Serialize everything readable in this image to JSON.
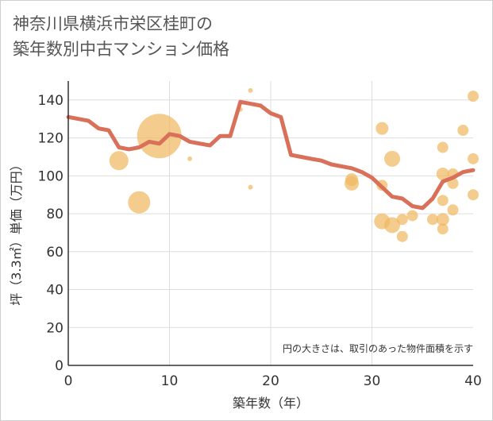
{
  "title": {
    "line1": "神奈川県横浜市栄区桂町の",
    "line2": "築年数別中古マンション価格"
  },
  "chart_data": {
    "type": "scatter+line",
    "title": "神奈川県横浜市栄区桂町の築年数別中古マンション価格",
    "xlabel": "築年数（年）",
    "ylabel": "坪（3.3㎡）単価（万円）",
    "xlim": [
      0,
      40
    ],
    "ylim": [
      0,
      150
    ],
    "xticks": [
      "0",
      "10",
      "20",
      "30",
      "40"
    ],
    "yticks": [
      "0",
      "20",
      "40",
      "60",
      "80",
      "100",
      "120",
      "140"
    ],
    "grid": true,
    "note": "円の大きさは、取引のあった物件面積を示す",
    "colors": {
      "bubble": "#f0b962",
      "line": "#d9705a",
      "grid": "#dddddd"
    },
    "line_series": {
      "name": "平均",
      "x": [
        0,
        1,
        2,
        3,
        4,
        5,
        6,
        7,
        8,
        9,
        10,
        11,
        12,
        13,
        14,
        15,
        16,
        17,
        18,
        19,
        20,
        21,
        22,
        23,
        24,
        25,
        26,
        27,
        28,
        29,
        30,
        31,
        32,
        33,
        34,
        35,
        36,
        37,
        38,
        39,
        40
      ],
      "y": [
        131,
        130,
        129,
        125,
        124,
        115,
        114,
        115,
        118,
        117,
        122,
        121,
        118,
        117,
        116,
        121,
        121,
        139,
        138,
        137,
        133,
        131,
        111,
        110,
        109,
        108,
        106,
        105,
        104,
        102,
        99,
        94,
        89,
        88,
        84,
        83,
        88,
        97,
        99,
        102,
        103
      ]
    },
    "bubble_series": {
      "name": "取引",
      "x": [
        5,
        7,
        9,
        12,
        17,
        18,
        18,
        28,
        28,
        31,
        31,
        31,
        32,
        32,
        33,
        33,
        34,
        36,
        37,
        37,
        37,
        37,
        37,
        38,
        38,
        38,
        39,
        40,
        40,
        40
      ],
      "y": [
        108,
        86,
        121,
        109,
        135,
        145,
        94,
        96,
        98,
        125,
        95,
        76,
        109,
        74,
        68,
        77,
        79,
        77,
        115,
        101,
        87,
        77,
        72,
        101,
        96,
        82,
        124,
        142,
        109,
        90
      ],
      "size": [
        12,
        14,
        28,
        3,
        3,
        3,
        3,
        9,
        8,
        8,
        7,
        10,
        10,
        10,
        7,
        7,
        7,
        7,
        7,
        8,
        7,
        8,
        7,
        7,
        7,
        7,
        7,
        7,
        7,
        7
      ]
    }
  }
}
